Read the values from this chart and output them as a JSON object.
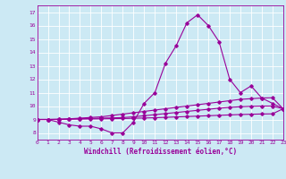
{
  "xlabel": "Windchill (Refroidissement éolien,°C)",
  "x_values": [
    0,
    1,
    2,
    3,
    4,
    5,
    6,
    7,
    8,
    9,
    10,
    11,
    12,
    13,
    14,
    15,
    16,
    17,
    18,
    19,
    20,
    21,
    22,
    23
  ],
  "line1": [
    9.0,
    9.0,
    8.8,
    8.6,
    8.5,
    8.5,
    8.3,
    8.0,
    8.0,
    8.8,
    10.2,
    11.0,
    13.2,
    14.5,
    16.2,
    16.8,
    16.0,
    14.8,
    12.0,
    11.0,
    11.5,
    10.6,
    10.2,
    9.8
  ],
  "line2": [
    9.0,
    9.0,
    9.0,
    9.05,
    9.1,
    9.15,
    9.2,
    9.3,
    9.4,
    9.5,
    9.6,
    9.7,
    9.8,
    9.9,
    10.0,
    10.1,
    10.2,
    10.3,
    10.4,
    10.5,
    10.55,
    10.6,
    10.62,
    9.8
  ],
  "line3": [
    9.0,
    9.0,
    9.02,
    9.04,
    9.06,
    9.08,
    9.1,
    9.12,
    9.14,
    9.2,
    9.28,
    9.36,
    9.44,
    9.52,
    9.6,
    9.68,
    9.76,
    9.84,
    9.9,
    9.95,
    9.98,
    10.0,
    10.0,
    9.8
  ],
  "line4": [
    9.0,
    9.0,
    9.01,
    9.02,
    9.03,
    9.04,
    9.05,
    9.06,
    9.07,
    9.09,
    9.11,
    9.13,
    9.16,
    9.19,
    9.22,
    9.25,
    9.28,
    9.31,
    9.34,
    9.37,
    9.39,
    9.41,
    9.42,
    9.8
  ],
  "line_color": "#990099",
  "bg_color": "#cce9f4",
  "grid_color": "#b0d8e8",
  "ylim": [
    7.5,
    17.5
  ],
  "yticks": [
    8,
    9,
    10,
    11,
    12,
    13,
    14,
    15,
    16,
    17
  ],
  "xlim": [
    0,
    23
  ]
}
